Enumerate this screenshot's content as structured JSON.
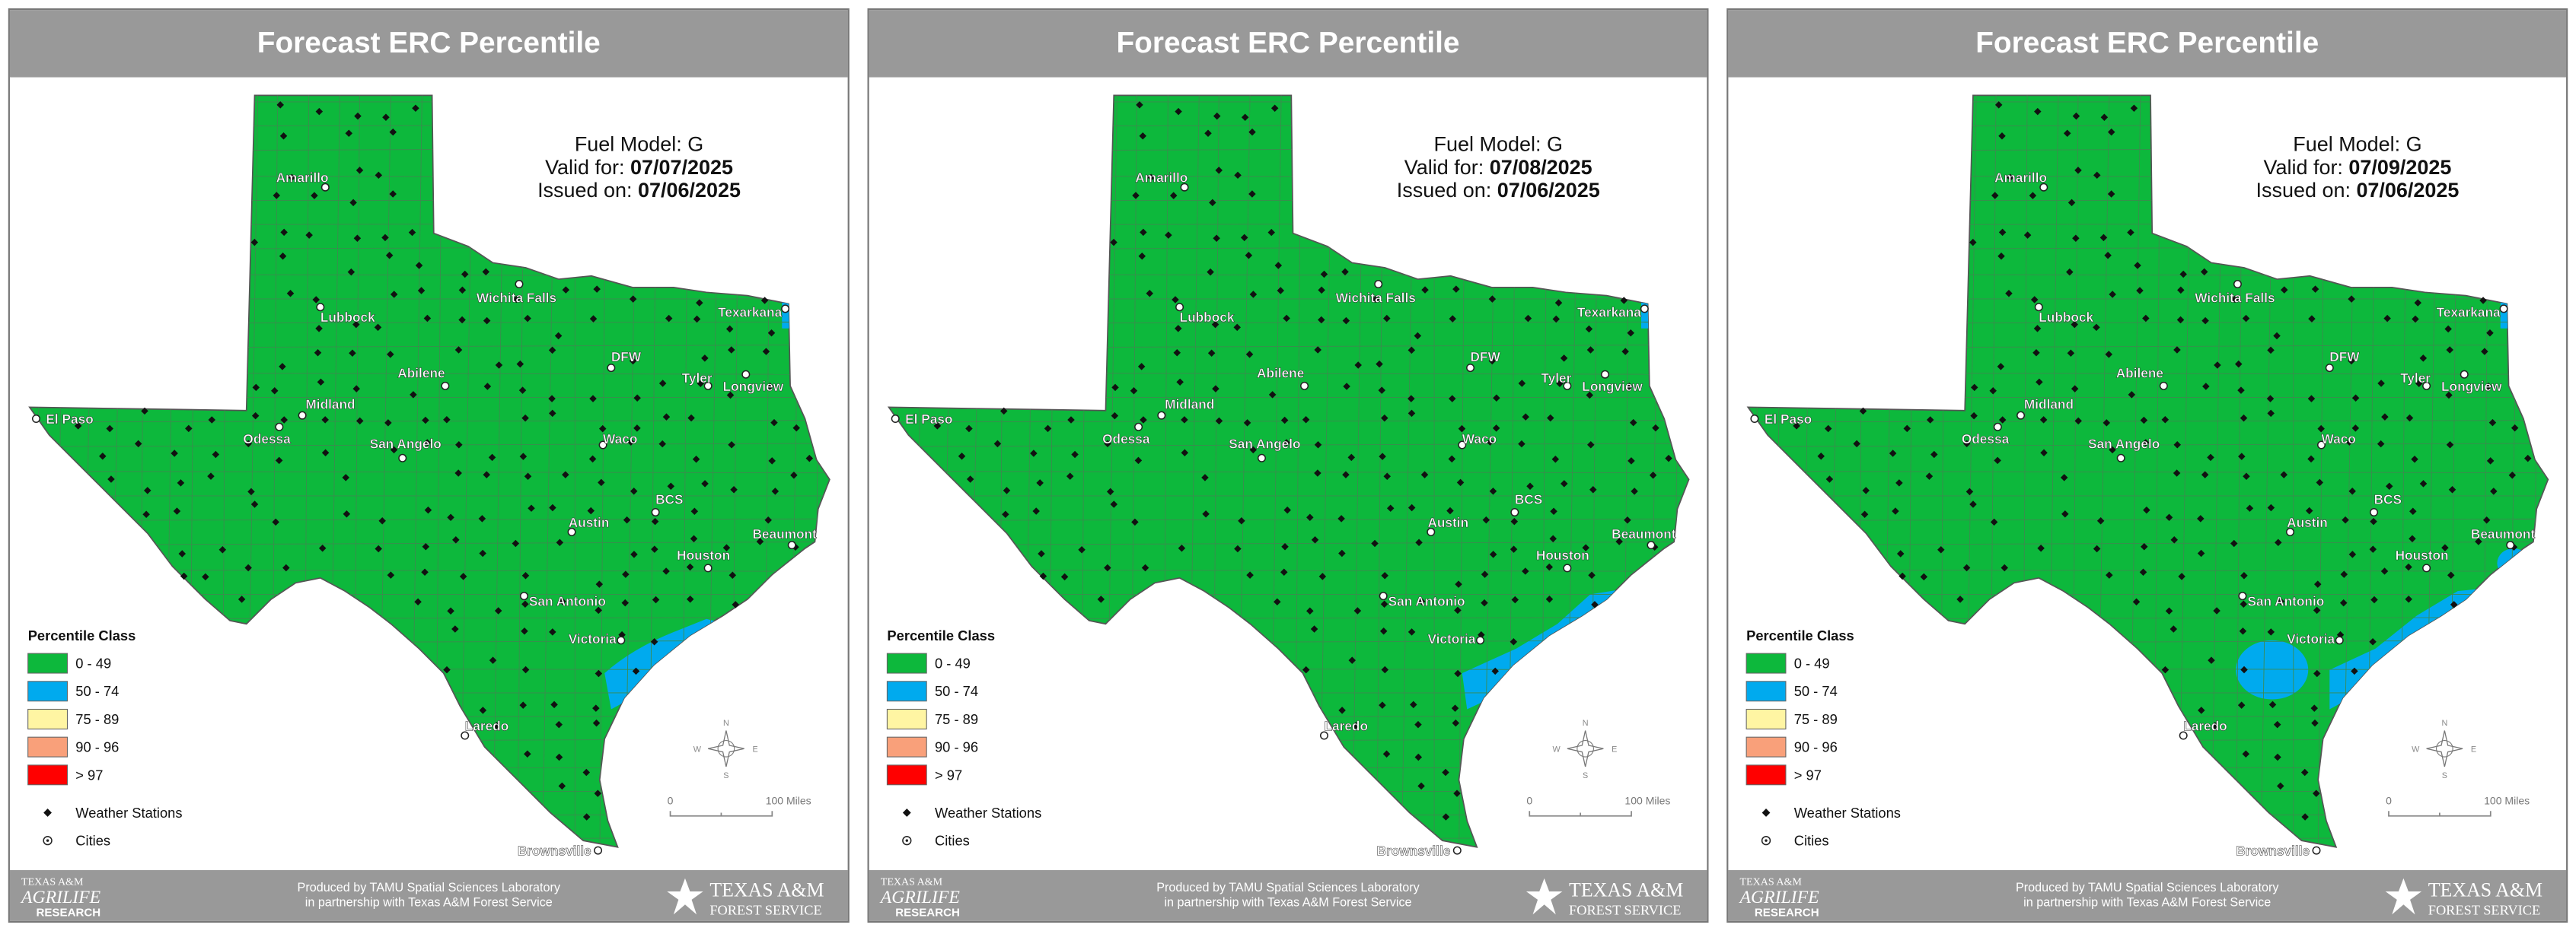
{
  "panels": [
    {
      "header": {
        "title": "Forecast ERC Percentile"
      },
      "info": {
        "fuel_model": "Fuel Model: G",
        "valid_label": "Valid for: ",
        "valid_date": "07/07/2025",
        "issued_label": "Issued on: ",
        "issued_date": "07/06/2025"
      },
      "cities": [
        "Amarillo",
        "Lubbock",
        "Wichita Falls",
        "Texarkana",
        "DFW",
        "Tyler",
        "Longview",
        "El Paso",
        "Midland",
        "Odessa",
        "Abilene",
        "San Angelo",
        "Waco",
        "BCS",
        "Austin",
        "Beaumont",
        "Houston",
        "San Antonio",
        "Victoria",
        "Laredo",
        "Brownsville"
      ],
      "legend": {
        "title": "Percentile Class",
        "classes": [
          "0 - 49",
          "50 - 74",
          "75 - 89",
          "90 - 96",
          "> 97"
        ],
        "stations": "Weather Stations",
        "cities": "Cities"
      },
      "scale": {
        "start": "0",
        "end": "100 Miles"
      },
      "compass": {
        "n": "N",
        "s": "S",
        "e": "E",
        "w": "W"
      },
      "footer": {
        "left_logo": [
          "TEXAS A&M",
          "AGRILIFE",
          "RESEARCH"
        ],
        "credit": [
          "Produced by TAMU Spatial Sciences Laboratory",
          "in partnership with Texas A&M Forest Service"
        ],
        "right_logo": [
          "TEXAS A&M",
          "FOREST SERVICE"
        ]
      }
    },
    {
      "header": {
        "title": "Forecast ERC Percentile"
      },
      "info": {
        "fuel_model": "Fuel Model: G",
        "valid_label": "Valid for: ",
        "valid_date": "07/08/2025",
        "issued_label": "Issued on: ",
        "issued_date": "07/06/2025"
      },
      "cities": [
        "Amarillo",
        "Lubbock",
        "Wichita Falls",
        "Texarkana",
        "DFW",
        "Tyler",
        "Longview",
        "El Paso",
        "Midland",
        "Odessa",
        "Abilene",
        "San Angelo",
        "Waco",
        "BCS",
        "Austin",
        "Beaumont",
        "Houston",
        "San Antonio",
        "Victoria",
        "Laredo",
        "Brownsville"
      ],
      "legend": {
        "title": "Percentile Class",
        "classes": [
          "0 - 49",
          "50 - 74",
          "75 - 89",
          "90 - 96",
          "> 97"
        ],
        "stations": "Weather Stations",
        "cities": "Cities"
      },
      "scale": {
        "start": "0",
        "end": "100 Miles"
      },
      "compass": {
        "n": "N",
        "s": "S",
        "e": "E",
        "w": "W"
      },
      "footer": {
        "left_logo": [
          "TEXAS A&M",
          "AGRILIFE",
          "RESEARCH"
        ],
        "credit": [
          "Produced by TAMU Spatial Sciences Laboratory",
          "in partnership with Texas A&M Forest Service"
        ],
        "right_logo": [
          "TEXAS A&M",
          "FOREST SERVICE"
        ]
      }
    },
    {
      "header": {
        "title": "Forecast ERC Percentile"
      },
      "info": {
        "fuel_model": "Fuel Model: G",
        "valid_label": "Valid for: ",
        "valid_date": "07/09/2025",
        "issued_label": "Issued on: ",
        "issued_date": "07/06/2025"
      },
      "cities": [
        "Amarillo",
        "Lubbock",
        "Wichita Falls",
        "Texarkana",
        "DFW",
        "Tyler",
        "Longview",
        "El Paso",
        "Midland",
        "Odessa",
        "Abilene",
        "San Angelo",
        "Waco",
        "BCS",
        "Austin",
        "Beaumont",
        "Houston",
        "San Antonio",
        "Victoria",
        "Laredo",
        "Brownsville"
      ],
      "legend": {
        "title": "Percentile Class",
        "classes": [
          "0 - 49",
          "50 - 74",
          "75 - 89",
          "90 - 96",
          "> 97"
        ],
        "stations": "Weather Stations",
        "cities": "Cities"
      },
      "scale": {
        "start": "0",
        "end": "100 Miles"
      },
      "compass": {
        "n": "N",
        "s": "S",
        "e": "E",
        "w": "W"
      },
      "footer": {
        "left_logo": [
          "TEXAS A&M",
          "AGRILIFE",
          "RESEARCH"
        ],
        "credit": [
          "Produced by TAMU Spatial Sciences Laboratory",
          "in partnership with Texas A&M Forest Service"
        ],
        "right_logo": [
          "TEXAS A&M",
          "FOREST SERVICE"
        ]
      }
    }
  ]
}
